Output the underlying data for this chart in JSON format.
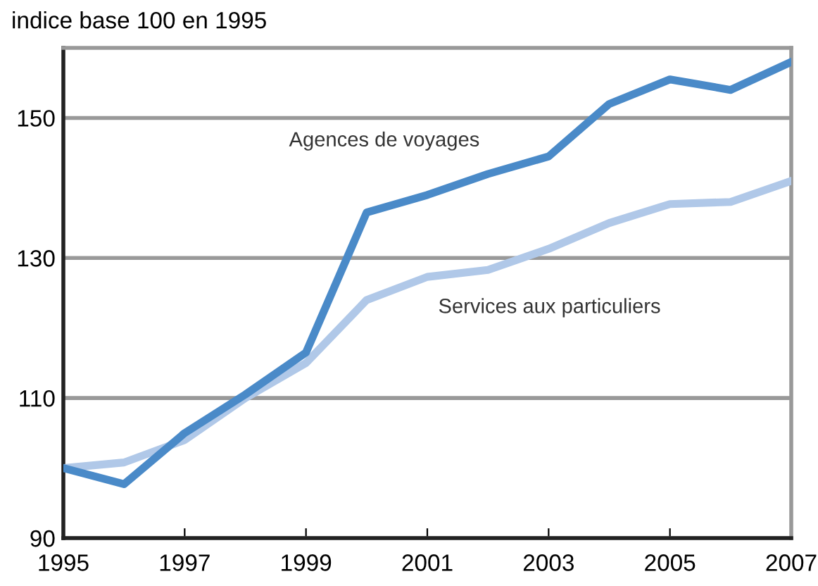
{
  "chart_data": {
    "type": "line",
    "title": "indice base 100 en 1995",
    "x": [
      1995,
      1996,
      1997,
      1998,
      1999,
      2000,
      2001,
      2002,
      2003,
      2004,
      2005,
      2006,
      2007
    ],
    "series": [
      {
        "name": "Agences de voyages",
        "color": "#4a8ac8",
        "values": [
          100,
          97.7,
          105,
          110.5,
          116.5,
          136.5,
          139,
          142,
          144.5,
          152,
          155.5,
          154,
          158
        ]
      },
      {
        "name": "Services aux particuliers",
        "color": "#b0c8e8",
        "values": [
          100,
          100.8,
          104,
          110,
          115,
          124,
          127.3,
          128.3,
          131.3,
          135,
          137.7,
          138,
          141
        ]
      }
    ],
    "xlim": [
      1995,
      2007
    ],
    "ylim": [
      90,
      160
    ],
    "xticks": [
      1995,
      1997,
      1999,
      2001,
      2003,
      2005,
      2007
    ],
    "yticks": [
      90,
      110,
      130,
      150
    ],
    "grid": "y",
    "legend": false,
    "marker": "none",
    "line_style": "solid"
  }
}
